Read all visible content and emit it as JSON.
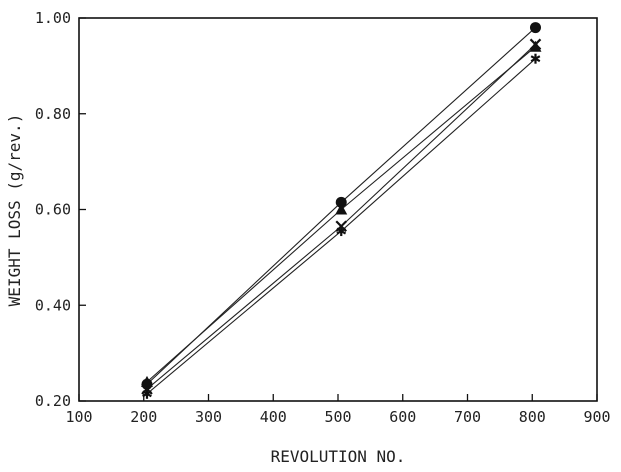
{
  "chart_data": {
    "type": "line",
    "title": "",
    "xlabel": "REVOLUTION NO.",
    "ylabel": "WEIGHT LOSS (g/rev.)",
    "xlim": [
      100,
      900
    ],
    "ylim": [
      0.2,
      1.0
    ],
    "x_ticks": [
      "100",
      "200",
      "300",
      "400",
      "500",
      "600",
      "700",
      "800",
      "900"
    ],
    "y_ticks": [
      "0.20",
      "0.40",
      "0.60",
      "0.80",
      "1.00"
    ],
    "grid": false,
    "legend": "none",
    "series": [
      {
        "marker": "circle",
        "x": [
          205,
          505,
          805
        ],
        "y": [
          0.235,
          0.615,
          0.98
        ]
      },
      {
        "marker": "triangle",
        "x": [
          205,
          505,
          805
        ],
        "y": [
          0.24,
          0.6,
          0.94
        ]
      },
      {
        "marker": "x",
        "x": [
          205,
          505,
          805
        ],
        "y": [
          0.225,
          0.565,
          0.945
        ]
      },
      {
        "marker": "asterisk",
        "x": [
          205,
          505,
          805
        ],
        "y": [
          0.215,
          0.555,
          0.915
        ]
      }
    ]
  }
}
